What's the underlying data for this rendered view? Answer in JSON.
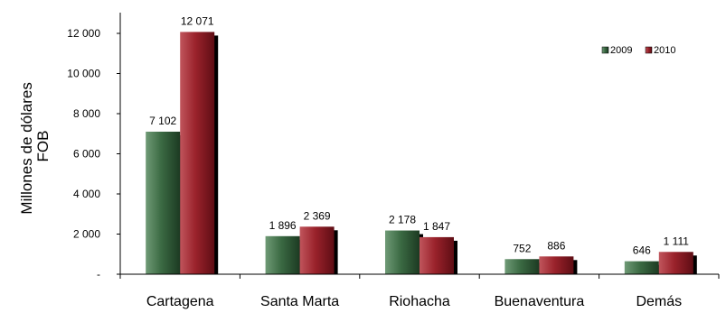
{
  "chart_data": {
    "type": "bar",
    "categories": [
      "Cartagena",
      "Santa Marta",
      "Riohacha",
      "Buenaventura",
      "Demás"
    ],
    "series": [
      {
        "name": "2009",
        "values": [
          7102,
          1896,
          2178,
          752,
          646
        ],
        "labels": [
          "7 102",
          "1 896",
          "2 178",
          "752",
          "646"
        ],
        "color": "#2e5a36"
      },
      {
        "name": "2010",
        "values": [
          12071,
          2369,
          1847,
          886,
          1111
        ],
        "labels": [
          "12 071",
          "2 369",
          "1 847",
          "886",
          "1 111"
        ],
        "color": "#8b1a22"
      }
    ],
    "ylabel_lines": [
      "Millones de dólares",
      "FOB"
    ],
    "yticks": [
      0,
      2000,
      4000,
      6000,
      8000,
      10000,
      12000
    ],
    "ytick_labels": [
      "-",
      "2 000",
      "4 000",
      "6 000",
      "8 000",
      "10 000",
      "12 000"
    ],
    "ylim": [
      0,
      12000
    ],
    "legend_position": "top-right",
    "grid": false
  }
}
